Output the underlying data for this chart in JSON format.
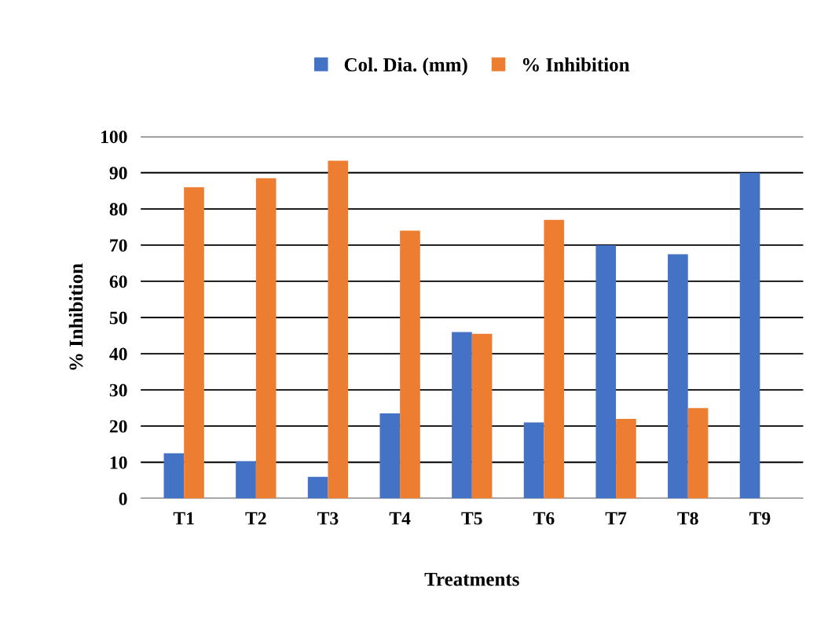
{
  "chart_data": {
    "type": "bar",
    "xlabel": "Treatments",
    "ylabel": "% Inhibition",
    "categories": [
      "T1",
      "T2",
      "T3",
      "T4",
      "T5",
      "T6",
      "T7",
      "T8",
      "T9"
    ],
    "series": [
      {
        "name": "Col. Dia. (mm)",
        "color": "#4472c4",
        "values": [
          12.5,
          10.3,
          6,
          23.5,
          46,
          21,
          70,
          67.5,
          90
        ]
      },
      {
        "name": "% Inhibition",
        "color": "#ed7d31",
        "values": [
          86,
          88.5,
          93.3,
          74,
          45.5,
          77,
          22,
          25,
          0
        ]
      }
    ],
    "ylim": [
      0,
      100
    ],
    "yticks": [
      0,
      10,
      20,
      30,
      40,
      50,
      60,
      70,
      80,
      90,
      100
    ],
    "grid": "y",
    "legend": "top"
  }
}
